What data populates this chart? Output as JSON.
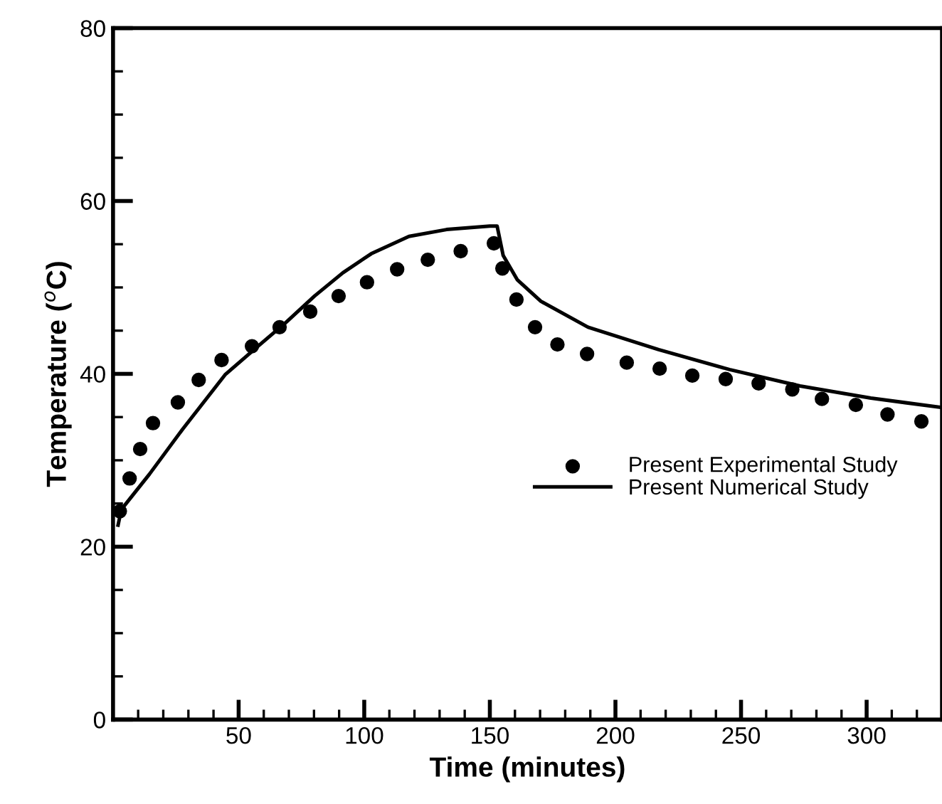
{
  "chart_data": {
    "type": "line",
    "xlabel": "Time (minutes)",
    "ylabel": "Temperature ($^{o}$C)",
    "xlim": [
      0,
      330
    ],
    "ylim": [
      0,
      80
    ],
    "xticks": [
      {
        "value": 10,
        "label": null
      },
      {
        "value": 20,
        "label": null
      },
      {
        "value": 30,
        "label": null
      },
      {
        "value": 40,
        "label": null
      },
      50,
      {
        "value": 60,
        "label": null
      },
      {
        "value": 70,
        "label": null
      },
      {
        "value": 80,
        "label": null
      },
      {
        "value": 90,
        "label": null
      },
      100,
      {
        "value": 110,
        "label": null
      },
      {
        "value": 120,
        "label": null
      },
      {
        "value": 130,
        "label": null
      },
      {
        "value": 140,
        "label": null
      },
      150,
      {
        "value": 160,
        "label": null
      },
      {
        "value": 170,
        "label": null
      },
      {
        "value": 180,
        "label": null
      },
      {
        "value": 190,
        "label": null
      },
      200,
      {
        "value": 210,
        "label": null
      },
      {
        "value": 220,
        "label": null
      },
      {
        "value": 230,
        "label": null
      },
      {
        "value": 240,
        "label": null
      },
      250,
      {
        "value": 260,
        "label": null
      },
      {
        "value": 270,
        "label": null
      },
      {
        "value": 280,
        "label": null
      },
      {
        "value": 290,
        "label": null
      },
      300,
      {
        "value": 310,
        "label": null
      },
      {
        "value": 320,
        "label": null
      }
    ],
    "yticks": [
      0,
      {
        "value": 5,
        "label": null
      },
      {
        "value": 10,
        "label": null
      },
      {
        "value": 15,
        "label": null
      },
      20,
      {
        "value": 25,
        "label": null
      },
      {
        "value": 30,
        "label": null
      },
      {
        "value": 35,
        "label": null
      },
      40,
      {
        "value": 45,
        "label": null
      },
      {
        "value": 50,
        "label": null
      },
      {
        "value": 55,
        "label": null
      },
      60,
      {
        "value": 65,
        "label": null
      },
      {
        "value": 70,
        "label": null
      },
      {
        "value": 75,
        "label": null
      },
      80
    ],
    "grid": false,
    "legend": "right",
    "series": [
      {
        "name": "Present Experimental Study",
        "type": "scatter",
        "marker": "circle",
        "color": "#000000",
        "x": [
          2.7,
          6.6,
          10.8,
          15.9,
          25.8,
          34.1,
          43.2,
          55.3,
          66.3,
          78.5,
          89.8,
          101.1,
          113.1,
          125.3,
          138.4,
          151.6,
          155,
          160.6,
          168,
          176.9,
          188.7,
          204.5,
          217.6,
          230.6,
          243.9,
          257,
          270.4,
          282.2,
          295.7,
          308.3,
          321.8
        ],
        "values": [
          24.1,
          27.9,
          31.3,
          34.3,
          36.7,
          39.3,
          41.6,
          43.2,
          45.4,
          47.2,
          49.0,
          50.6,
          52.1,
          53.2,
          54.2,
          55.1,
          52.2,
          48.6,
          45.4,
          43.4,
          42.3,
          41.3,
          40.6,
          39.8,
          39.4,
          38.9,
          38.2,
          37.1,
          36.4,
          35.3,
          34.5
        ]
      },
      {
        "name": "Present Numerical Study",
        "marker": "none",
        "line_style": "solid",
        "color": "#000000",
        "x": [
          2,
          3.3,
          14.5,
          27.7,
          44.6,
          57.7,
          69,
          80.2,
          91.5,
          102.8,
          117.8,
          132.8,
          150,
          152.9,
          155.3,
          160.9,
          170.3,
          189.1,
          217.2,
          245.4,
          273.5,
          301.7,
          330
        ],
        "values": [
          22.5,
          24.3,
          28.4,
          33.6,
          39.9,
          43.2,
          46,
          49.0,
          51.7,
          53.9,
          55.9,
          56.7,
          57.1,
          57.1,
          53.7,
          50.9,
          48.4,
          45.4,
          42.8,
          40.5,
          38.6,
          37.2,
          36.1
        ]
      }
    ]
  }
}
